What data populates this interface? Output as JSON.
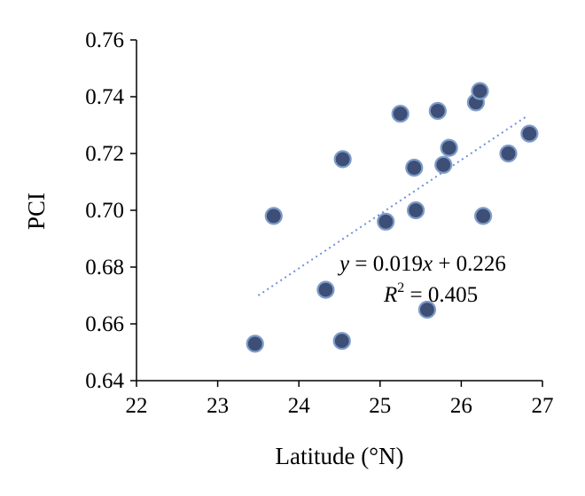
{
  "chart_data": {
    "type": "scatter",
    "xlabel": "Latitude (°N)",
    "ylabel": "PCI",
    "xlim": [
      22,
      27
    ],
    "ylim": [
      0.64,
      0.76
    ],
    "x_ticks": [
      "22",
      "23",
      "24",
      "25",
      "26",
      "27"
    ],
    "y_ticks": [
      "0.64",
      "0.66",
      "0.68",
      "0.70",
      "0.72",
      "0.74",
      "0.76"
    ],
    "grid": false,
    "points": [
      {
        "x": 23.46,
        "y": 0.653
      },
      {
        "x": 23.69,
        "y": 0.698
      },
      {
        "x": 24.33,
        "y": 0.672
      },
      {
        "x": 24.53,
        "y": 0.654
      },
      {
        "x": 24.54,
        "y": 0.718
      },
      {
        "x": 25.07,
        "y": 0.696
      },
      {
        "x": 25.25,
        "y": 0.734
      },
      {
        "x": 25.42,
        "y": 0.715
      },
      {
        "x": 25.44,
        "y": 0.7
      },
      {
        "x": 25.58,
        "y": 0.665
      },
      {
        "x": 25.71,
        "y": 0.735
      },
      {
        "x": 25.78,
        "y": 0.716
      },
      {
        "x": 25.85,
        "y": 0.722
      },
      {
        "x": 26.18,
        "y": 0.738
      },
      {
        "x": 26.23,
        "y": 0.742
      },
      {
        "x": 26.27,
        "y": 0.698
      },
      {
        "x": 26.58,
        "y": 0.72
      },
      {
        "x": 26.84,
        "y": 0.727
      }
    ],
    "trendline": {
      "type": "linear",
      "x_range": [
        23.5,
        26.8
      ],
      "y_range": [
        0.67,
        0.733
      ]
    },
    "annotations": {
      "eq_y": "y",
      "eq_rest": " = 0.019",
      "eq_x": "x",
      "eq_tail": " + 0.226",
      "r2_r": "R",
      "r2_sup": "2",
      "r2_rest": " = 0.405"
    },
    "colors": {
      "marker_fill": "#3d4f76",
      "marker_stroke": "#7f9cc8",
      "trendline": "#6f8fe0",
      "axis": "#000000"
    }
  }
}
